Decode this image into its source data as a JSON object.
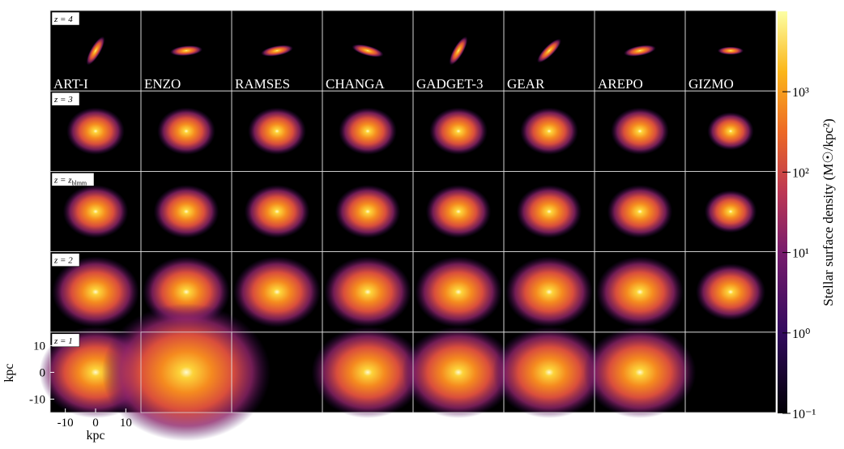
{
  "chart_data": {
    "type": "image-grid",
    "codes": [
      "ART-I",
      "ENZO",
      "RAMSES",
      "CHANGA",
      "GADGET-3",
      "GEAR",
      "AREPO",
      "GIZMO"
    ],
    "rows": [
      {
        "text": "z = 4"
      },
      {
        "text": "z = 3"
      },
      {
        "text": "z = z",
        "sub": "blmm"
      },
      {
        "text": "z = 2"
      },
      {
        "text": "z = 1"
      }
    ],
    "xlabel": "kpc",
    "ylabel": "kpc",
    "xlim": [
      -15,
      15
    ],
    "ylim": [
      -15,
      15
    ],
    "xticks": [
      -10,
      0,
      10
    ],
    "yticks": [
      -10,
      0,
      10
    ],
    "colorbar": {
      "label": "Stellar surface density (M☉/kpc²)",
      "lim": [
        0.1,
        10000
      ],
      "log": true,
      "ticks": [
        {
          "value": 0.1,
          "label": "10⁻¹"
        },
        {
          "value": 1,
          "label": "10⁰"
        },
        {
          "value": 10,
          "label": "10¹"
        },
        {
          "value": 100,
          "label": "10²"
        },
        {
          "value": 1000,
          "label": "10³"
        }
      ]
    }
  }
}
